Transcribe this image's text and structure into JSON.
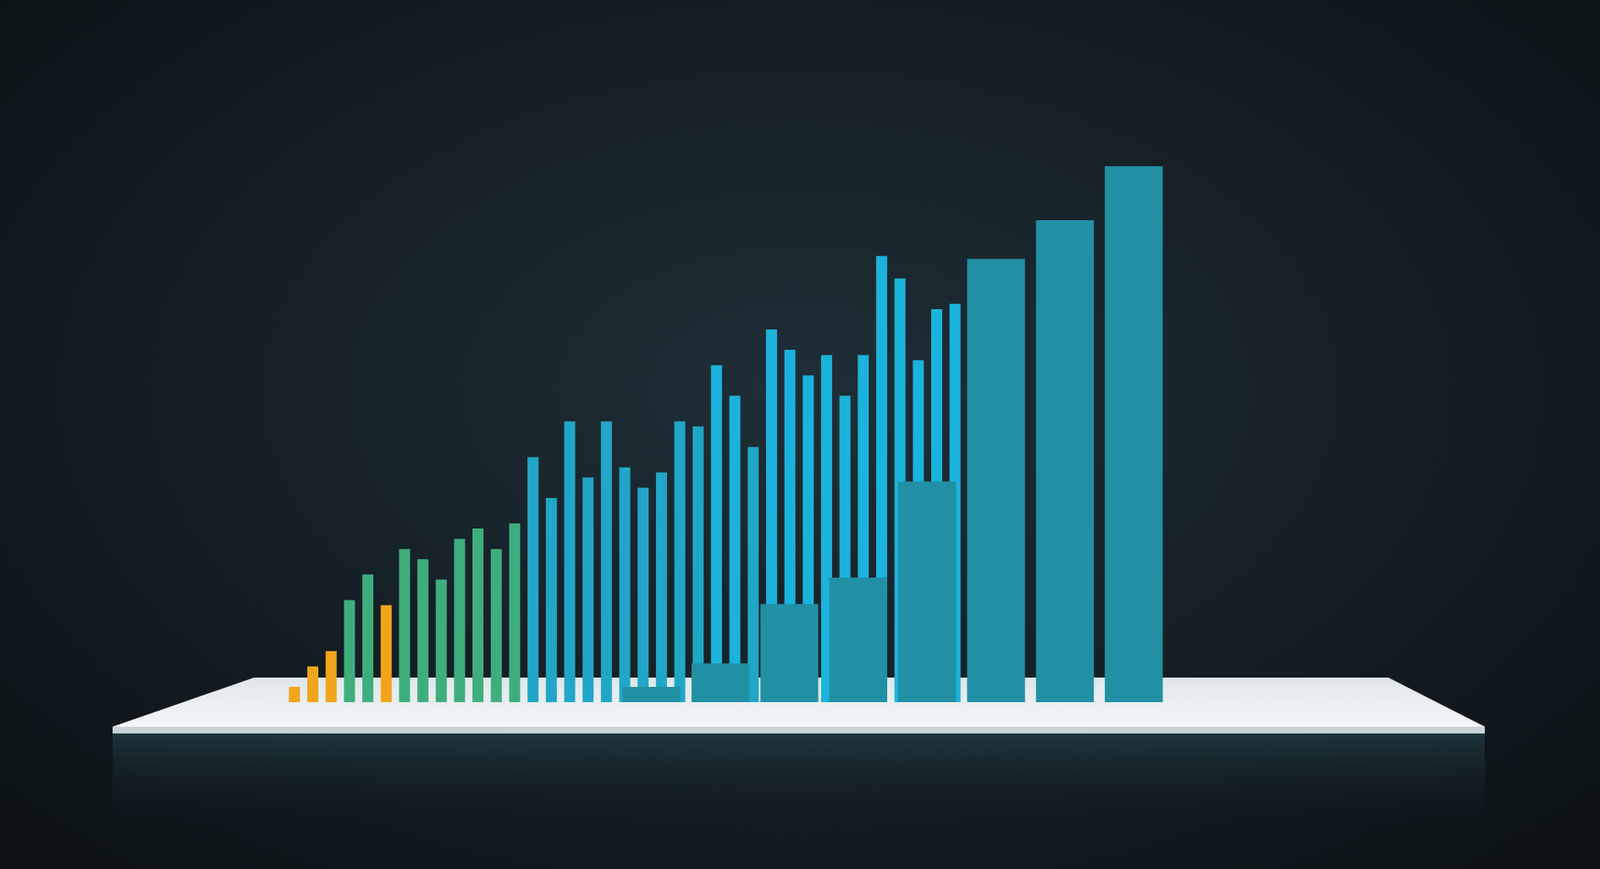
{
  "chart_data": [
    {
      "type": "bar",
      "categories": [
        null,
        null,
        null,
        null,
        null,
        null,
        null,
        null,
        null,
        null,
        null,
        null,
        null,
        null,
        null,
        null,
        null,
        null,
        null,
        null,
        null,
        null,
        null,
        null,
        null,
        null,
        null,
        null,
        null,
        null,
        null,
        null,
        null,
        null,
        null,
        null,
        null
      ],
      "values": [
        15,
        35,
        50,
        100,
        125,
        95,
        150,
        140,
        120,
        160,
        170,
        150,
        175,
        240,
        200,
        275,
        220,
        275,
        230,
        210,
        225,
        275,
        270,
        330,
        300,
        250,
        365,
        345,
        320,
        340,
        300,
        340,
        437,
        415,
        335,
        385,
        390
      ],
      "colors": [
        "#f2a51a",
        "#f2a51a",
        "#f2a51a",
        "#3fae7e",
        "#3fae7e",
        "#f2a51a",
        "#3fae7e",
        "#3fae7e",
        "#3fae7e",
        "#3fae7e",
        "#3fae7e",
        "#3fae7e",
        "#3fae7e",
        "#22a6c8",
        "#22a6c8",
        "#22a6c8",
        "#22a6c8",
        "#22a6c8",
        "#22a6c8",
        "#22a6c8",
        "#22a6c8",
        "#22a6c8",
        "#22a6c8",
        "#1bb3dc",
        "#1bb3dc",
        "#22a6c8",
        "#1bb3dc",
        "#1bb3dc",
        "#1bb3dc",
        "#1bb3dc",
        "#1bb3dc",
        "#1bb3dc",
        "#1bb3dc",
        "#1bb3dc",
        "#1bb3dc",
        "#1bb3dc",
        "#1bb3dc"
      ],
      "ylim": [
        0,
        550
      ],
      "grid": false,
      "tick_labels": false
    },
    {
      "type": "bar",
      "categories": [
        null,
        null,
        null,
        null,
        null,
        null,
        null,
        null
      ],
      "values": [
        15,
        38,
        96,
        122,
        216,
        434,
        472,
        525
      ],
      "color": "#2190a5",
      "ylim": [
        0,
        550
      ],
      "grid": false,
      "tick_labels": false
    }
  ]
}
